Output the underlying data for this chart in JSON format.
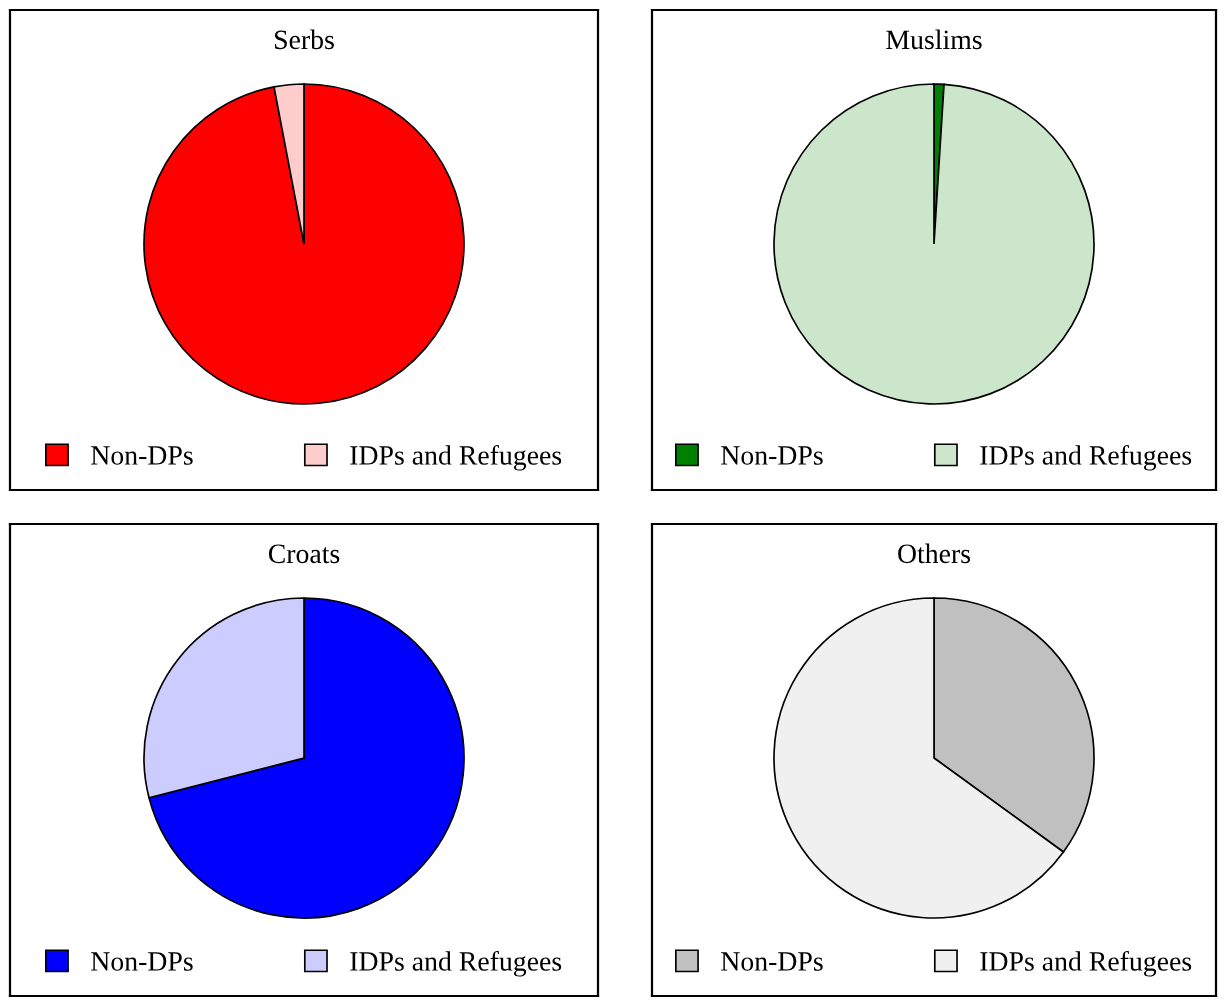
{
  "chart_data": [
    {
      "type": "pie",
      "title": "Serbs",
      "categories": [
        "Non-DPs",
        "IDPs and Refugees"
      ],
      "values": [
        97,
        3
      ],
      "colors": [
        "#ff0000",
        "#ffcccc"
      ],
      "legend": "bottom"
    },
    {
      "type": "pie",
      "title": "Muslims",
      "categories": [
        "Non-DPs",
        "IDPs and Refugees"
      ],
      "values": [
        1,
        99
      ],
      "colors": [
        "#008000",
        "#cce6cc"
      ],
      "legend": "bottom"
    },
    {
      "type": "pie",
      "title": "Croats",
      "categories": [
        "Non-DPs",
        "IDPs and Refugees"
      ],
      "values": [
        71,
        29
      ],
      "colors": [
        "#0000ff",
        "#ccccff"
      ],
      "legend": "bottom"
    },
    {
      "type": "pie",
      "title": "Others",
      "categories": [
        "Non-DPs",
        "IDPs and Refugees"
      ],
      "values": [
        35,
        65
      ],
      "colors": [
        "#c0c0c0",
        "#f0f0f0"
      ],
      "legend": "bottom"
    }
  ]
}
